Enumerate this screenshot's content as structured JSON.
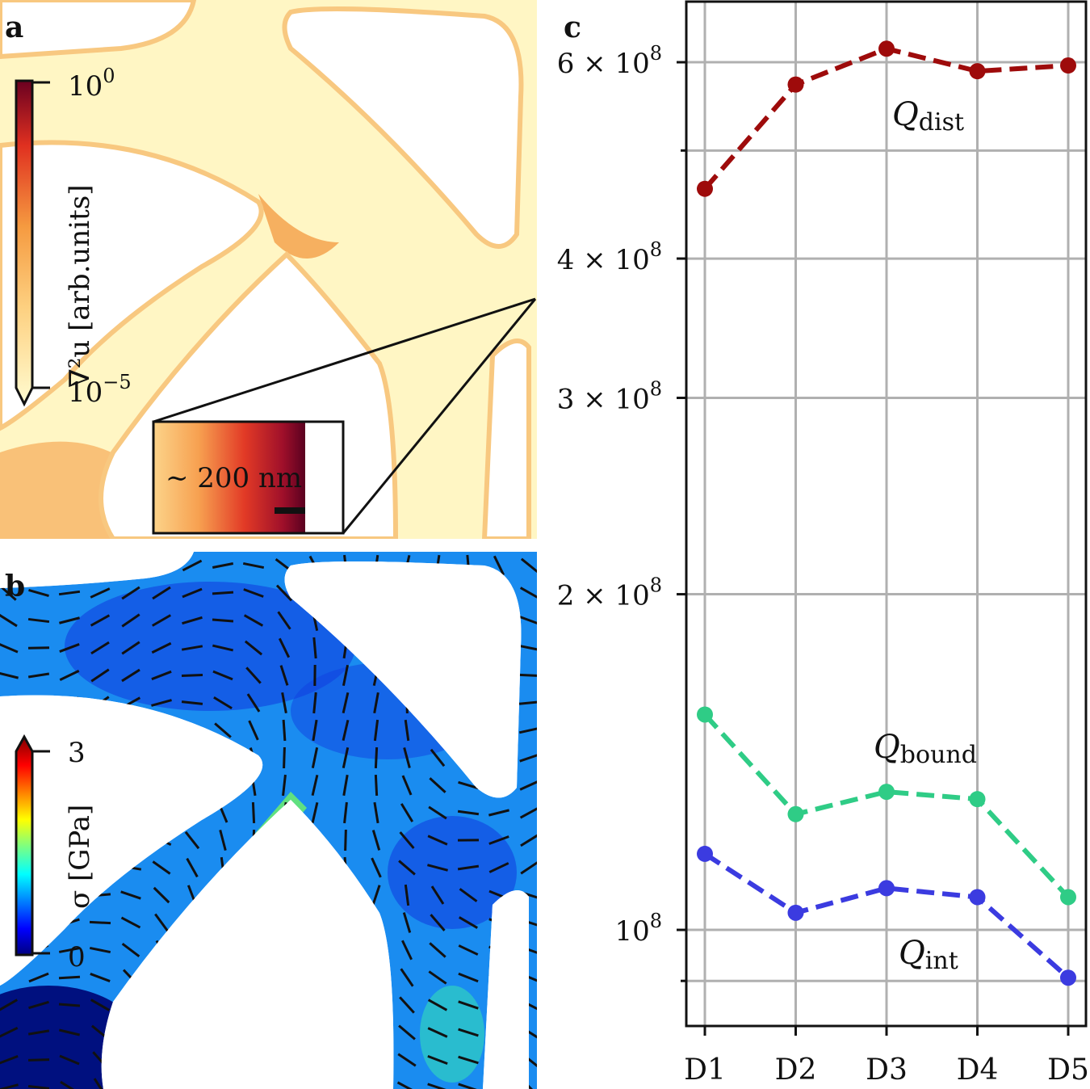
{
  "panels": {
    "a": {
      "label": "a",
      "colorbar": {
        "label": "∇²u [arb.units]",
        "max_label": "10",
        "max_exp": "0",
        "min_label": "10",
        "min_exp": "−5",
        "scale": "log",
        "colors": [
          "#fffbd0",
          "#fdd080",
          "#f59a40",
          "#e03020",
          "#6a0020"
        ]
      },
      "inset": {
        "label": "∼ 200 nm"
      }
    },
    "b": {
      "label": "b",
      "colorbar": {
        "label": "σ [GPa]",
        "max_label": "3",
        "min_label": "0",
        "colormap": "jet"
      }
    },
    "c": {
      "label": "c"
    }
  },
  "chart_data": {
    "type": "line",
    "categories": [
      "D1",
      "D2",
      "D3",
      "D4",
      "D5"
    ],
    "yscale": "log",
    "ylim": [
      82000000,
      680000000
    ],
    "yticks": [
      {
        "value": 600000000,
        "mant": "6 × 10",
        "exp": "8"
      },
      {
        "value": 400000000,
        "mant": "4 × 10",
        "exp": "8"
      },
      {
        "value": 300000000,
        "mant": "3 × 10",
        "exp": "8"
      },
      {
        "value": 200000000,
        "mant": "2 × 10",
        "exp": "8"
      },
      {
        "value": 100000000,
        "mant": "10",
        "exp": "8"
      }
    ],
    "minor_yticks": [
      500000000,
      90000000
    ],
    "grid": true,
    "series": [
      {
        "name": "Q",
        "sub": "dist",
        "color": "#9e0b0b",
        "values": [
          462000000,
          573000000,
          617000000,
          589000000,
          596000000
        ]
      },
      {
        "name": "Q",
        "sub": "bound",
        "color": "#2fcc86",
        "values": [
          156000000,
          127000000,
          133000000,
          131000000,
          107000000
        ]
      },
      {
        "name": "Q",
        "sub": "int",
        "color": "#3b3be0",
        "values": [
          117000000,
          103600000,
          109000000,
          107000000,
          90600000
        ]
      }
    ]
  }
}
